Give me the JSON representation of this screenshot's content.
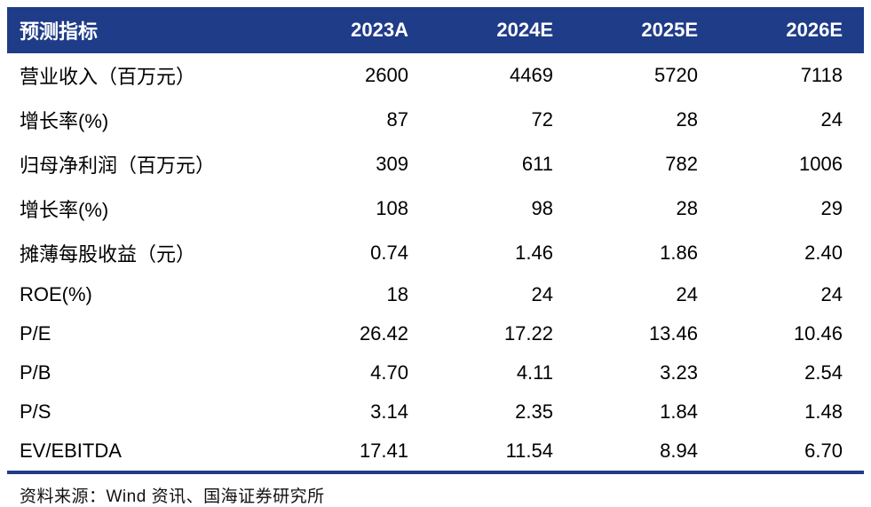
{
  "table": {
    "header": {
      "indicator_label": "预测指标",
      "columns": [
        "2023A",
        "2024E",
        "2025E",
        "2026E"
      ]
    },
    "rows": [
      {
        "label": "营业收入（百万元）",
        "values": [
          "2600",
          "4469",
          "5720",
          "7118"
        ]
      },
      {
        "label": "增长率(%)",
        "values": [
          "87",
          "72",
          "28",
          "24"
        ]
      },
      {
        "label": "归母净利润（百万元）",
        "values": [
          "309",
          "611",
          "782",
          "1006"
        ]
      },
      {
        "label": "增长率(%)",
        "values": [
          "108",
          "98",
          "28",
          "29"
        ]
      },
      {
        "label": "摊薄每股收益（元）",
        "values": [
          "0.74",
          "1.46",
          "1.86",
          "2.40"
        ]
      },
      {
        "label": "ROE(%)",
        "values": [
          "18",
          "24",
          "24",
          "24"
        ]
      },
      {
        "label": "P/E",
        "values": [
          "26.42",
          "17.22",
          "13.46",
          "10.46"
        ]
      },
      {
        "label": "P/B",
        "values": [
          "4.70",
          "4.11",
          "3.23",
          "2.54"
        ]
      },
      {
        "label": "P/S",
        "values": [
          "3.14",
          "2.35",
          "1.84",
          "1.48"
        ]
      },
      {
        "label": "EV/EBITDA",
        "values": [
          "17.41",
          "11.54",
          "8.94",
          "6.70"
        ]
      }
    ]
  },
  "footer": {
    "source_text": "资料来源：Wind 资讯、国海证券研究所"
  },
  "colors": {
    "header_bg": "#1F3C88",
    "header_text": "#FFFFFF",
    "bottom_rule": "#1F3C88"
  }
}
